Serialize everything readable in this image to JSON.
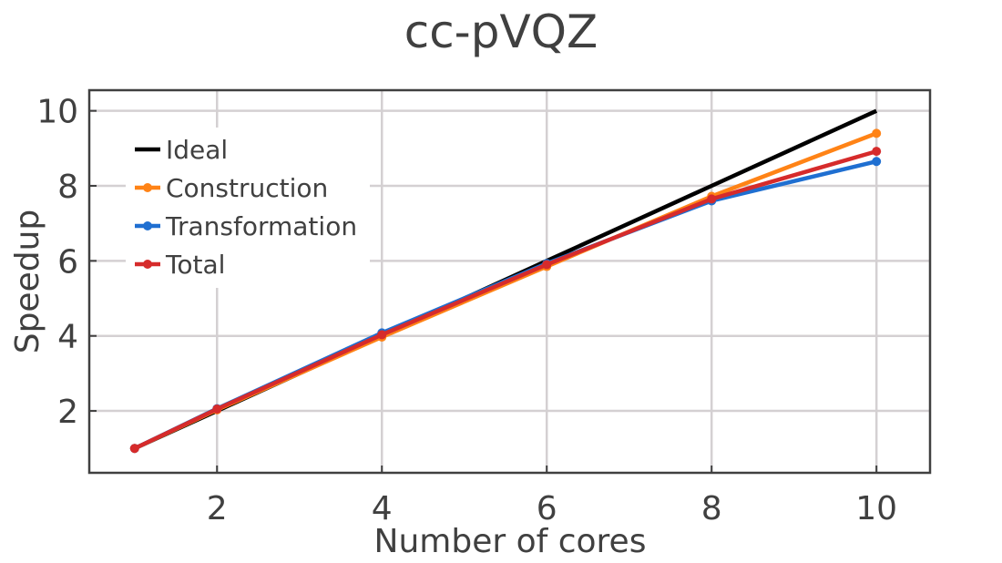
{
  "chart_data": {
    "type": "line",
    "title": "cc-pVQZ",
    "xlabel": "Number of cores",
    "ylabel": "Speedup",
    "xlim": [
      0.45,
      10.65
    ],
    "ylim": [
      0.35,
      10.55
    ],
    "xticks": [
      2,
      4,
      6,
      8,
      10
    ],
    "yticks": [
      2,
      4,
      6,
      8,
      10
    ],
    "grid": true,
    "legend_position": "top-left",
    "x": [
      1,
      2,
      4,
      6,
      8,
      10
    ],
    "series": [
      {
        "name": "Ideal",
        "color": "#000000",
        "markers": false,
        "values": [
          1,
          2,
          4,
          6,
          8,
          10
        ]
      },
      {
        "name": "Construction",
        "color": "#ff8316",
        "markers": true,
        "values": [
          1,
          2.03,
          3.97,
          5.85,
          7.72,
          9.4
        ]
      },
      {
        "name": "Transformation",
        "color": "#1f6fd1",
        "markers": true,
        "values": [
          1,
          2.06,
          4.08,
          5.93,
          7.6,
          8.65
        ]
      },
      {
        "name": "Total",
        "color": "#d62b2b",
        "markers": true,
        "values": [
          1,
          2.05,
          4.03,
          5.9,
          7.65,
          8.92
        ]
      }
    ]
  }
}
